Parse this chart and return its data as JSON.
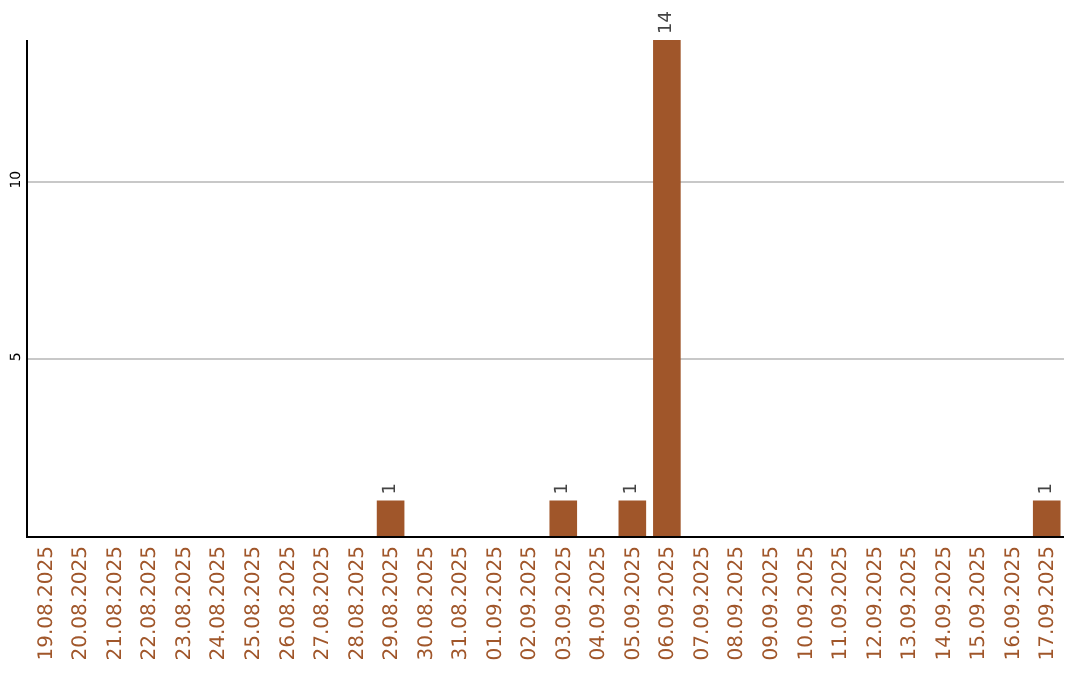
{
  "chart_data": {
    "type": "bar",
    "categories": [
      "19.08.2025",
      "20.08.2025",
      "21.08.2025",
      "22.08.2025",
      "23.08.2025",
      "24.08.2025",
      "25.08.2025",
      "26.08.2025",
      "27.08.2025",
      "28.08.2025",
      "29.08.2025",
      "30.08.2025",
      "31.08.2025",
      "01.09.2025",
      "02.09.2025",
      "03.09.2025",
      "04.09.2025",
      "05.09.2025",
      "06.09.2025",
      "07.09.2025",
      "08.09.2025",
      "09.09.2025",
      "10.09.2025",
      "11.09.2025",
      "12.09.2025",
      "13.09.2025",
      "14.09.2025",
      "15.09.2025",
      "16.09.2025",
      "17.09.2025"
    ],
    "values": [
      0,
      0,
      0,
      0,
      0,
      0,
      0,
      0,
      0,
      0,
      1,
      0,
      0,
      0,
      0,
      1,
      0,
      1,
      14,
      0,
      0,
      0,
      0,
      0,
      0,
      0,
      0,
      0,
      0,
      1
    ],
    "value_labels": [
      null,
      null,
      null,
      null,
      null,
      null,
      null,
      null,
      null,
      null,
      "1",
      null,
      null,
      null,
      null,
      "1",
      null,
      "1",
      "14",
      null,
      null,
      null,
      null,
      null,
      null,
      null,
      null,
      null,
      null,
      "1"
    ],
    "color": "#a0562a",
    "ylim": [
      0,
      14
    ],
    "yticks": [
      5,
      10
    ],
    "grid": "y",
    "legend": false
  }
}
